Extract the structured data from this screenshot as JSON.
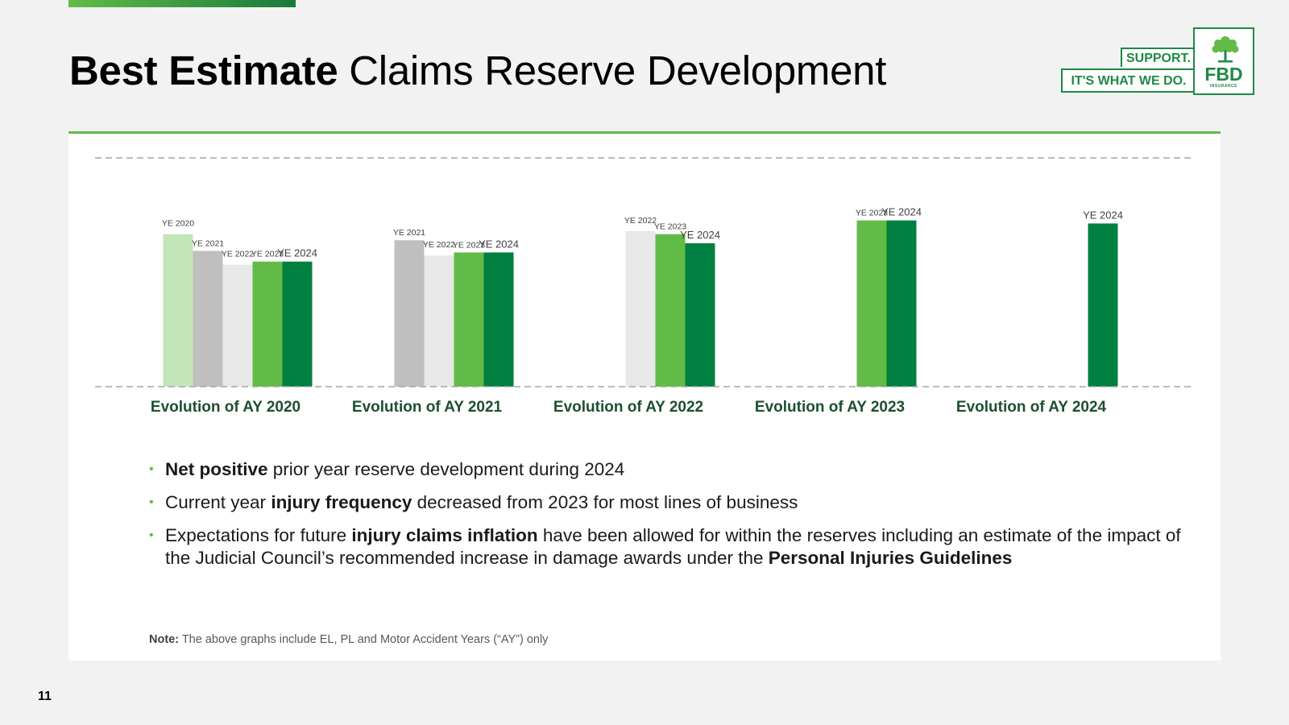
{
  "header": {
    "title_bold": "Best Estimate",
    "title_rest": "Claims Reserve Development"
  },
  "logo": {
    "support": "SUPPORT.",
    "tagline": "IT'S WHAT WE DO.",
    "brand": "FBD",
    "sub": "INSURANCE"
  },
  "chart_data": {
    "type": "bar",
    "title": "",
    "categories": [
      "Evolution of AY 2020",
      "Evolution of AY 2021",
      "Evolution of AY 2022",
      "Evolution of AY 2023",
      "Evolution of AY 2024"
    ],
    "series": [
      {
        "name": "YE 2020",
        "color": "#c3e6b8",
        "values": [
          100,
          null,
          null,
          null,
          null
        ]
      },
      {
        "name": "YE 2021",
        "color": "#bfbfbf",
        "values": [
          89,
          96,
          null,
          null,
          null
        ]
      },
      {
        "name": "YE 2022",
        "color": "#e8e8e8",
        "values": [
          80,
          86,
          102,
          null,
          null
        ]
      },
      {
        "name": "YE 2023",
        "color": "#62bb46",
        "values": [
          82,
          88,
          100,
          109,
          null
        ]
      },
      {
        "name": "YE 2024",
        "color": "#008040",
        "values": [
          82,
          88,
          94,
          109,
          107
        ]
      }
    ],
    "ylim": [
      0,
      150
    ],
    "grid": "dashed top and bottom lines",
    "legend": "data labels above bars"
  },
  "bullets": [
    {
      "parts": [
        {
          "b": true,
          "t": "Net positive"
        },
        {
          "b": false,
          "t": " prior year reserve development during 2024"
        }
      ]
    },
    {
      "parts": [
        {
          "b": false,
          "t": "Current year "
        },
        {
          "b": true,
          "t": "injury frequency"
        },
        {
          "b": false,
          "t": " decreased from 2023 for most lines of business"
        }
      ]
    },
    {
      "parts": [
        {
          "b": false,
          "t": "Expectations for future "
        },
        {
          "b": true,
          "t": "injury claims inflation"
        },
        {
          "b": false,
          "t": " have been allowed for within the reserves including an estimate of the impact of the Judicial Council’s recommended increase in damage awards under the "
        },
        {
          "b": true,
          "t": "Personal Injuries Guidelines"
        }
      ]
    }
  ],
  "note": {
    "label": "Note:",
    "text": " The above graphs include EL, PL and Motor Accident Years (“AY”) only"
  },
  "page_number": "11"
}
